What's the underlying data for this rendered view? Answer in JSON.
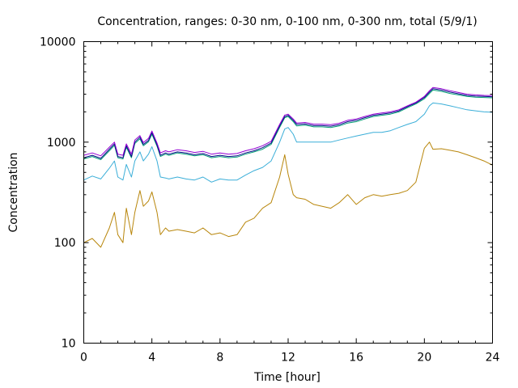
{
  "chart_data": {
    "type": "line",
    "title": "Concentration, ranges: 0-30 nm, 0-100 nm, 0-300 nm, total (5/9/1)",
    "xlabel": "Time [hour]",
    "ylabel": "Concentration",
    "xlim": [
      0,
      24
    ],
    "ylim": [
      10,
      10000
    ],
    "yscale": "log",
    "grid": false,
    "legend": "none",
    "x_ticks": [
      0,
      4,
      8,
      12,
      16,
      20,
      24
    ],
    "x_tick_labels": [
      "0",
      "4",
      "8",
      "12",
      "16",
      "20",
      "24"
    ],
    "y_ticks": [
      10,
      100,
      1000,
      10000
    ],
    "y_tick_labels": [
      "10",
      "100",
      "1000",
      "10000"
    ],
    "x": [
      0,
      0.5,
      1,
      1.5,
      1.8,
      2,
      2.3,
      2.5,
      2.8,
      3,
      3.3,
      3.5,
      3.8,
      4,
      4.3,
      4.5,
      4.8,
      5,
      5.5,
      6,
      6.5,
      7,
      7.5,
      8,
      8.5,
      9,
      9.5,
      10,
      10.5,
      11,
      11.5,
      11.8,
      12,
      12.3,
      12.5,
      13,
      13.5,
      14,
      14.5,
      15,
      15.5,
      16,
      16.5,
      17,
      17.5,
      18,
      18.5,
      19,
      19.5,
      20,
      20.3,
      20.5,
      21,
      21.5,
      22,
      22.5,
      23,
      23.5,
      24
    ],
    "series": [
      {
        "color": "#b8860b",
        "values": [
          100,
          110,
          90,
          140,
          200,
          120,
          100,
          220,
          120,
          200,
          330,
          230,
          260,
          320,
          200,
          120,
          140,
          130,
          135,
          130,
          125,
          140,
          120,
          125,
          115,
          120,
          160,
          175,
          220,
          250,
          450,
          750,
          480,
          300,
          280,
          270,
          240,
          230,
          220,
          250,
          300,
          240,
          280,
          300,
          290,
          300,
          310,
          330,
          400,
          870,
          1000,
          850,
          860,
          830,
          800,
          750,
          700,
          650,
          590
        ]
      },
      {
        "color": "#3aaed8",
        "values": [
          420,
          460,
          430,
          550,
          650,
          450,
          420,
          600,
          450,
          650,
          800,
          650,
          760,
          900,
          650,
          450,
          440,
          430,
          450,
          430,
          420,
          450,
          400,
          430,
          420,
          420,
          470,
          520,
          560,
          650,
          1000,
          1350,
          1400,
          1200,
          1000,
          1000,
          1000,
          1000,
          1000,
          1050,
          1100,
          1150,
          1200,
          1250,
          1250,
          1300,
          1400,
          1500,
          1600,
          1900,
          2300,
          2450,
          2400,
          2300,
          2200,
          2100,
          2050,
          2000,
          1980
        ]
      },
      {
        "color": "#009e73",
        "values": [
          680,
          720,
          670,
          820,
          930,
          700,
          680,
          890,
          700,
          970,
          1080,
          920,
          1010,
          1200,
          910,
          720,
          760,
          740,
          780,
          760,
          730,
          750,
          700,
          720,
          700,
          710,
          760,
          800,
          850,
          950,
          1400,
          1750,
          1800,
          1600,
          1450,
          1480,
          1420,
          1420,
          1400,
          1450,
          1550,
          1600,
          1700,
          1800,
          1850,
          1900,
          2000,
          2200,
          2400,
          2700,
          3050,
          3300,
          3200,
          3050,
          2950,
          2850,
          2800,
          2780,
          2760
        ]
      },
      {
        "color": "#0a0a8a",
        "values": [
          700,
          740,
          690,
          850,
          960,
          720,
          700,
          920,
          720,
          1000,
          1120,
          950,
          1040,
          1240,
          940,
          740,
          780,
          760,
          800,
          780,
          750,
          770,
          720,
          740,
          720,
          730,
          780,
          820,
          880,
          980,
          1450,
          1800,
          1850,
          1650,
          1500,
          1520,
          1460,
          1460,
          1440,
          1490,
          1600,
          1650,
          1750,
          1850,
          1900,
          1950,
          2050,
          2250,
          2450,
          2780,
          3150,
          3400,
          3300,
          3150,
          3030,
          2920,
          2870,
          2850,
          2830
        ]
      },
      {
        "color": "#9400d3",
        "values": [
          740,
          780,
          730,
          890,
          1000,
          760,
          740,
          960,
          760,
          1050,
          1160,
          990,
          1090,
          1290,
          980,
          780,
          820,
          800,
          840,
          820,
          790,
          810,
          760,
          780,
          760,
          770,
          820,
          860,
          920,
          1020,
          1500,
          1860,
          1900,
          1700,
          1550,
          1570,
          1510,
          1510,
          1490,
          1540,
          1650,
          1700,
          1800,
          1900,
          1950,
          2000,
          2100,
          2300,
          2500,
          2850,
          3250,
          3500,
          3400,
          3250,
          3120,
          3000,
          2950,
          2920,
          2900
        ]
      }
    ]
  }
}
